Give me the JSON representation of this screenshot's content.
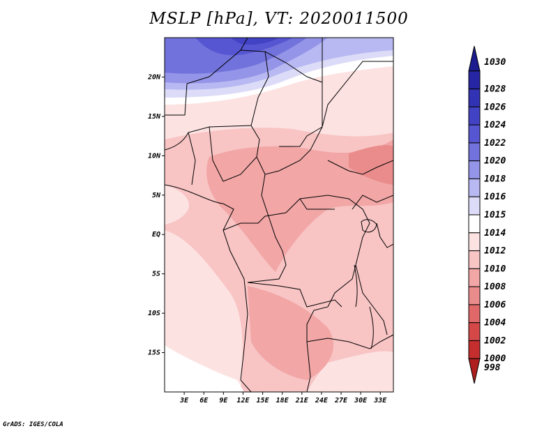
{
  "title": "MSLP [hPa], VT: 2020011500",
  "credit": "GrADS: IGES/COLA",
  "map": {
    "lon_range": [
      0,
      35
    ],
    "lat_range": [
      -20,
      25
    ],
    "lon_ticks": [
      {
        "value": 3,
        "label": "3E"
      },
      {
        "value": 6,
        "label": "6E"
      },
      {
        "value": 9,
        "label": "9E"
      },
      {
        "value": 12,
        "label": "12E"
      },
      {
        "value": 15,
        "label": "15E"
      },
      {
        "value": 18,
        "label": "18E"
      },
      {
        "value": 21,
        "label": "21E"
      },
      {
        "value": 24,
        "label": "24E"
      },
      {
        "value": 27,
        "label": "27E"
      },
      {
        "value": 30,
        "label": "30E"
      },
      {
        "value": 33,
        "label": "33E"
      }
    ],
    "lat_ticks": [
      {
        "value": 20,
        "label": "20N"
      },
      {
        "value": 15,
        "label": "15N"
      },
      {
        "value": 10,
        "label": "10N"
      },
      {
        "value": 5,
        "label": "5N"
      },
      {
        "value": 0,
        "label": "EQ"
      },
      {
        "value": -5,
        "label": "5S"
      },
      {
        "value": -10,
        "label": "10S"
      },
      {
        "value": -15,
        "label": "15S"
      }
    ]
  },
  "colorbar": {
    "levels": [
      {
        "label": "1030",
        "color": "#1c1c8e"
      },
      {
        "label": "1028",
        "color": "#2626a4"
      },
      {
        "label": "1026",
        "color": "#3232b4"
      },
      {
        "label": "1024",
        "color": "#4242c4"
      },
      {
        "label": "1022",
        "color": "#5656d2"
      },
      {
        "label": "1020",
        "color": "#7272dc"
      },
      {
        "label": "1018",
        "color": "#9494e8"
      },
      {
        "label": "1016",
        "color": "#b8b8f2"
      },
      {
        "label": "1015",
        "color": "#dcdcf8"
      },
      {
        "label": "1014",
        "color": "#ffffff"
      },
      {
        "label": "1012",
        "color": "#fde2e2"
      },
      {
        "label": "1010",
        "color": "#f8c4c4"
      },
      {
        "label": "1008",
        "color": "#f2a6a6"
      },
      {
        "label": "1006",
        "color": "#ea8c8c"
      },
      {
        "label": "1004",
        "color": "#e06868"
      },
      {
        "label": "1002",
        "color": "#d44848"
      },
      {
        "label": "1000",
        "color": "#c42e2e"
      },
      {
        "label": "998",
        "color": "#ae1e1e"
      }
    ]
  }
}
